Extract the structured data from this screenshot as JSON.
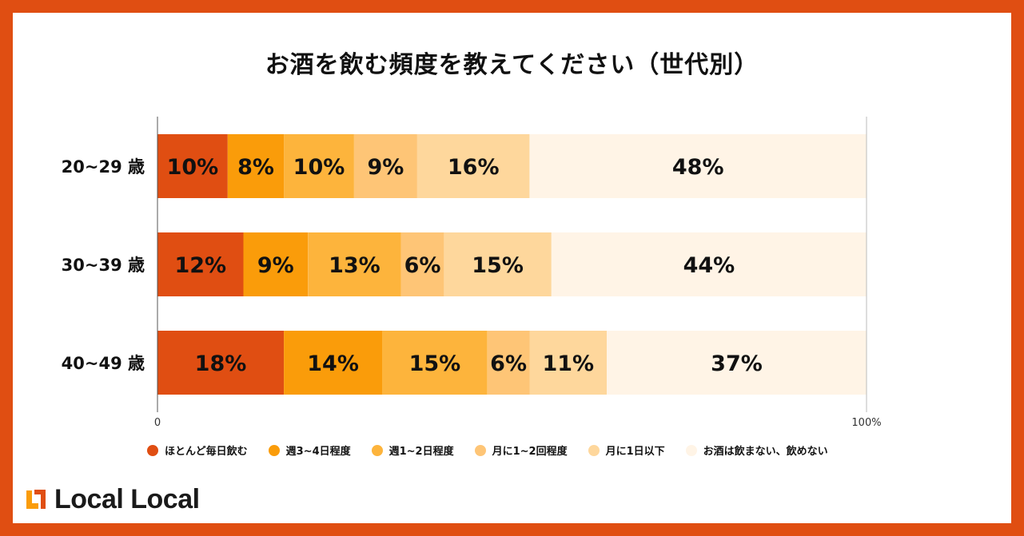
{
  "title": "お酒を飲む頻度を教えてください（世代別）",
  "logo": {
    "text": "Local Local",
    "icon": "local-local-logo-icon",
    "accent": "#E04E12"
  },
  "chart_data": {
    "type": "bar",
    "orientation": "horizontal",
    "stacked": true,
    "normalized": true,
    "title": "お酒を飲む頻度を教えてください（世代別）",
    "categories": [
      "20~29 歳",
      "30~39 歳",
      "40~49 歳"
    ],
    "series": [
      {
        "name": "ほとんど毎日飲む",
        "color": "#E04E12",
        "values": [
          10,
          12,
          18
        ],
        "labels": [
          "10%",
          "12%",
          "18%"
        ]
      },
      {
        "name": "週3~4日程度",
        "color": "#FA9C0A",
        "values": [
          8,
          9,
          14
        ],
        "labels": [
          "8%",
          "9%",
          "14%"
        ]
      },
      {
        "name": "週1~2日程度",
        "color": "#FDB43C",
        "values": [
          10,
          13,
          15
        ],
        "labels": [
          "10%",
          "13%",
          "15%"
        ]
      },
      {
        "name": "月に1~2回程度",
        "color": "#FEC576",
        "values": [
          9,
          6,
          6
        ],
        "labels": [
          "9%",
          "6%",
          "6%"
        ]
      },
      {
        "name": "月に1日以下",
        "color": "#FED79C",
        "values": [
          16,
          15,
          11
        ],
        "labels": [
          "16%",
          "15%",
          "11%"
        ]
      },
      {
        "name": "お酒は飲まない、飲めない",
        "color": "#FFF4E6",
        "values": [
          48,
          44,
          37
        ],
        "labels": [
          "48%",
          "44%",
          "37%"
        ]
      }
    ],
    "xlim": [
      0,
      100
    ],
    "xticks": [
      "0",
      "100%"
    ],
    "legend_position": "bottom",
    "grid": false
  }
}
